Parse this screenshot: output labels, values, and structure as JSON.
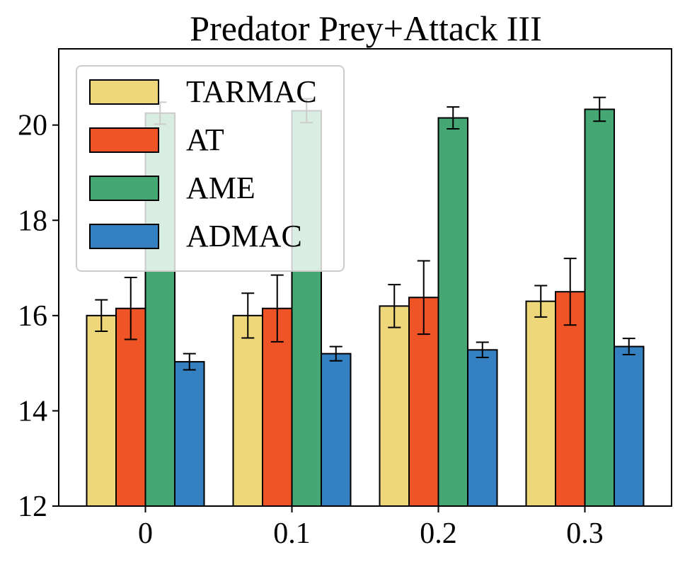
{
  "chart_data": {
    "type": "bar",
    "title": "Predator Prey+Attack III",
    "xlabel": "",
    "ylabel": "",
    "categories": [
      "0",
      "0.1",
      "0.2",
      "0.3"
    ],
    "ylim": [
      12,
      21.6
    ],
    "yticks": [
      12,
      14,
      16,
      18,
      20
    ],
    "grid": false,
    "legend_position": "top-left",
    "series": [
      {
        "name": "TARMAC",
        "color": "#EDD77A",
        "values": [
          16.0,
          16.0,
          16.2,
          16.3
        ],
        "errors": [
          0.33,
          0.47,
          0.45,
          0.33
        ]
      },
      {
        "name": "AT",
        "color": "#EF5427",
        "values": [
          16.15,
          16.15,
          16.38,
          16.5
        ],
        "errors": [
          0.65,
          0.7,
          0.77,
          0.7
        ]
      },
      {
        "name": "AME",
        "color": "#45A774",
        "values": [
          20.25,
          20.3,
          20.15,
          20.33
        ],
        "errors": [
          0.23,
          0.25,
          0.23,
          0.25
        ]
      },
      {
        "name": "ADMAC",
        "color": "#3580C1",
        "values": [
          15.03,
          15.2,
          15.28,
          15.35
        ],
        "errors": [
          0.17,
          0.15,
          0.16,
          0.17
        ]
      }
    ]
  }
}
